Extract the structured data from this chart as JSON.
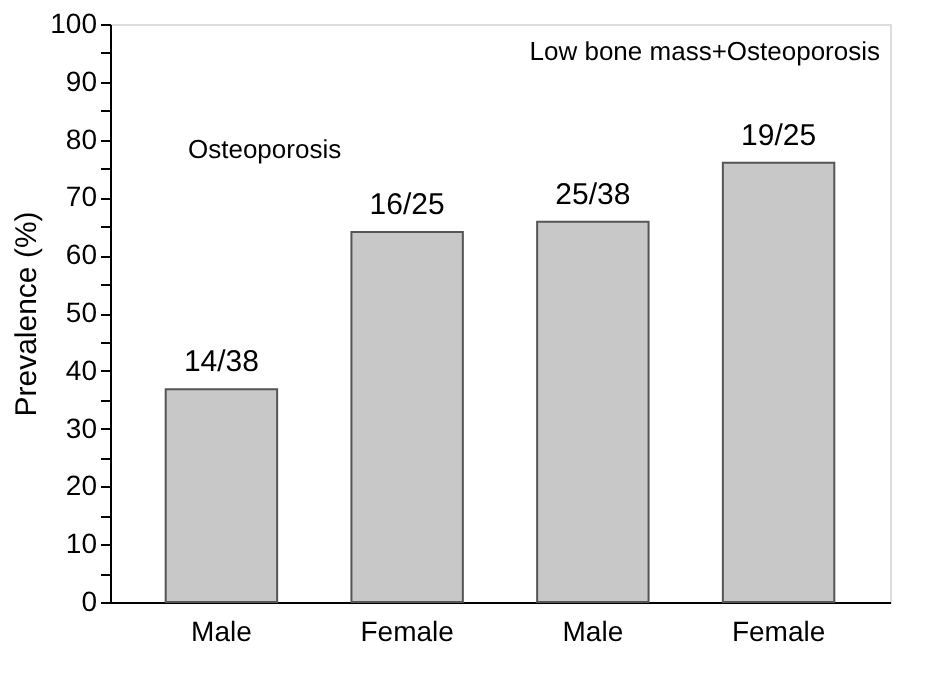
{
  "chart_data": {
    "type": "bar",
    "ylabel": "Prevalence (%)",
    "categories": [
      "Male",
      "Female",
      "Male",
      "Female"
    ],
    "values": [
      36.8,
      64,
      65.8,
      76
    ],
    "color": "#c8c8c8",
    "value_labels": [
      "14/38",
      "16/25",
      "25/38",
      "19/25"
    ],
    "annotations": [
      "Osteoporosis",
      "Low bone mass+Osteoporosis"
    ],
    "ylim": [
      0,
      100
    ],
    "yticks": [
      0,
      {
        "value": 5,
        "label": null
      },
      10,
      {
        "value": 15,
        "label": null
      },
      20,
      {
        "value": 25,
        "label": null
      },
      30,
      {
        "value": 35,
        "label": null
      },
      40,
      {
        "value": 45,
        "label": null
      },
      50,
      {
        "value": 55,
        "label": null
      },
      60,
      {
        "value": 65,
        "label": null
      },
      70,
      {
        "value": 75,
        "label": null
      },
      80,
      {
        "value": 85,
        "label": null
      },
      90,
      {
        "value": 95,
        "label": null
      },
      100
    ],
    "grid": false
  }
}
